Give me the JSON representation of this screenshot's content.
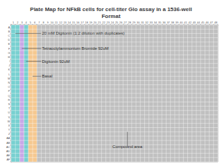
{
  "chart_data": {
    "type": "plate_map",
    "title": "Plate Map for NFkB cells for cell-titer Glo assay in a 1536-well\nFormat",
    "categories": [
      "1",
      "2",
      "3",
      "4",
      "5",
      "6",
      "7",
      "8",
      "9",
      "10",
      "11",
      "12",
      "13",
      "14",
      "15",
      "16",
      "17",
      "18",
      "19",
      "20",
      "21",
      "22",
      "23",
      "24",
      "25",
      "26",
      "27",
      "28",
      "29",
      "30",
      "31",
      "32",
      "33",
      "34",
      "35",
      "36",
      "37",
      "38",
      "39",
      "40",
      "41",
      "42",
      "43",
      "44",
      "45",
      "46",
      "47",
      "48"
    ],
    "rows": [
      "A",
      "B",
      "C",
      "D",
      "E",
      "F",
      "G",
      "H",
      "I",
      "J",
      "K",
      "L",
      "M",
      "N",
      "O",
      "P",
      "Q",
      "R",
      "S",
      "T",
      "U",
      "V",
      "W",
      "X",
      "Y",
      "Z",
      "AA",
      "AB",
      "AC",
      "AD",
      "AE",
      "AF"
    ],
    "plate_color": "#c0c0c0",
    "zones": [
      {
        "color": "#78d0d0",
        "col_start": 0,
        "col_end": 2,
        "row_start": 0,
        "row_end": 32
      },
      {
        "color": "#c8a8e8",
        "col_start": 2,
        "col_end": 3,
        "row_start": 0,
        "row_end": 32
      },
      {
        "color": "#78d0d0",
        "col_start": 3,
        "col_end": 4,
        "row_start": 0,
        "row_end": 32
      },
      {
        "color": "#f5c890",
        "col_start": 4,
        "col_end": 6,
        "row_start": 0,
        "row_end": 32
      },
      {
        "color": "#c0c0c0",
        "col_start": 6,
        "col_end": 48,
        "row_start": 0,
        "row_end": 32
      }
    ],
    "annotations": [
      {
        "text": "20 mM Digitonin (1:2 dilution with duplicates)",
        "xy": [
          1.0,
          2.0
        ],
        "xytext": [
          7.0,
          2.0
        ]
      },
      {
        "text": "Tetraoctylammonium Bromide 92uM",
        "xy": [
          2.5,
          5.5
        ],
        "xytext": [
          7.0,
          5.5
        ]
      },
      {
        "text": "Digitonin 92uM",
        "xy": [
          3.5,
          8.5
        ],
        "xytext": [
          7.0,
          8.5
        ]
      },
      {
        "text": "Basal",
        "xy": [
          5.0,
          12.0
        ],
        "xytext": [
          7.0,
          12.0
        ]
      },
      {
        "text": "Compound area",
        "xy": [
          27.0,
          25.0
        ],
        "xytext": [
          27.0,
          28.5
        ]
      }
    ],
    "grid": true
  }
}
